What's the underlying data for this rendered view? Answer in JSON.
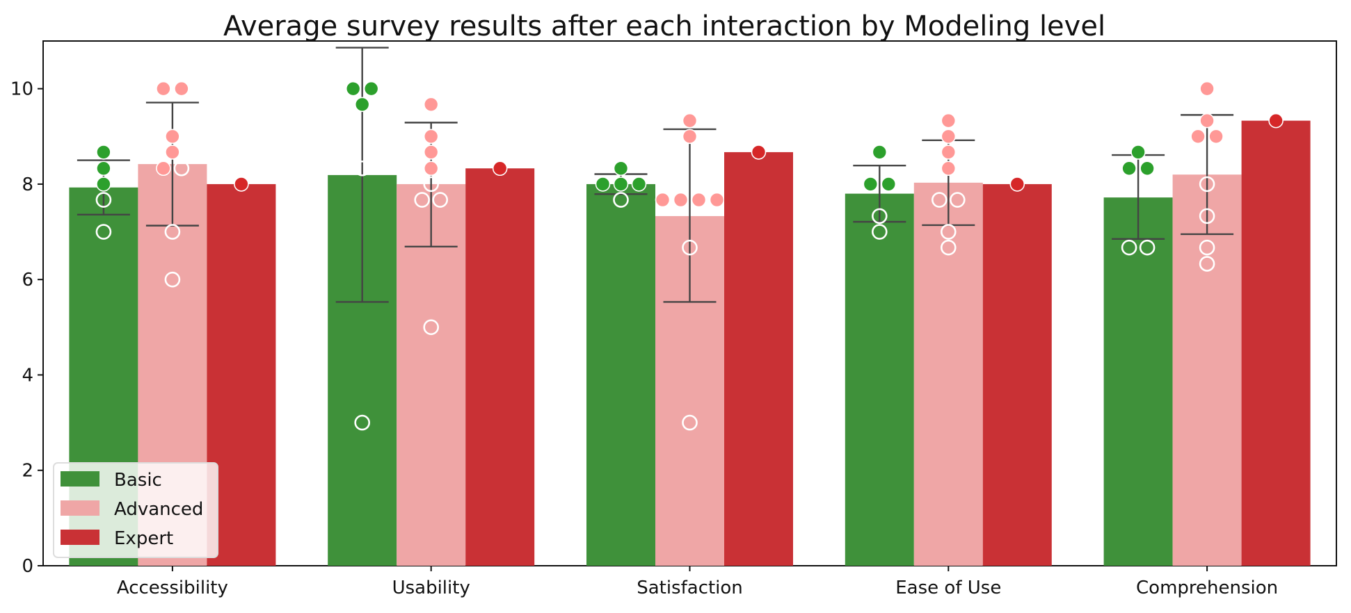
{
  "chart_data": {
    "type": "bar",
    "title": "Average survey results after each interaction by Modeling level",
    "xlabel": "",
    "ylabel": "",
    "categories": [
      "Accessibility",
      "Usability",
      "Satisfaction",
      "Ease of Use",
      "Comprehension"
    ],
    "ylim": [
      0,
      11
    ],
    "y_ticks": [
      0,
      2,
      4,
      6,
      8,
      10
    ],
    "grid": false,
    "legend_position": "bottom-left",
    "series": [
      {
        "name": "Basic",
        "color": "#3f913a",
        "point_color": "#2ca02c",
        "values": [
          7.93,
          8.19,
          8.0,
          7.8,
          7.72
        ],
        "error_low": [
          7.36,
          5.53,
          7.79,
          7.21,
          6.85
        ],
        "error_high": [
          8.5,
          10.86,
          8.21,
          8.39,
          8.61
        ],
        "points": [
          [
            8.67,
            8.33,
            8.0,
            7.67,
            7.0
          ],
          [
            10.0,
            10.0,
            9.67,
            8.33,
            3.0
          ],
          [
            8.0,
            8.0,
            8.0,
            8.33,
            7.67
          ],
          [
            8.67,
            8.0,
            8.0,
            7.33,
            7.0
          ],
          [
            8.67,
            8.33,
            8.33,
            6.67,
            6.67
          ]
        ],
        "point_style": [
          [
            "filled",
            "filled",
            "filled",
            "outlined",
            "outlined"
          ],
          [
            "filled",
            "filled",
            "filled",
            "outlined",
            "outlined"
          ],
          [
            "filled",
            "filled",
            "filled",
            "filled",
            "outlined"
          ],
          [
            "filled",
            "filled",
            "filled",
            "outlined",
            "outlined"
          ],
          [
            "filled",
            "filled",
            "filled",
            "outlined",
            "outlined"
          ]
        ]
      },
      {
        "name": "Advanced",
        "color": "#efa6a6",
        "point_color": "#ff9896",
        "values": [
          8.42,
          8.0,
          7.33,
          8.03,
          8.2
        ],
        "error_low": [
          7.13,
          6.69,
          5.53,
          7.14,
          6.95
        ],
        "error_high": [
          9.71,
          9.29,
          9.15,
          8.92,
          9.45
        ],
        "points": [
          [
            10.0,
            10.0,
            9.0,
            8.67,
            8.33,
            8.33,
            7.0,
            6.0
          ],
          [
            9.67,
            9.0,
            8.67,
            8.33,
            8.0,
            7.67,
            7.67,
            5.0
          ],
          [
            9.33,
            9.0,
            7.67,
            7.67,
            7.67,
            7.67,
            6.67,
            3.0
          ],
          [
            9.33,
            9.0,
            8.67,
            8.33,
            7.67,
            7.67,
            7.0,
            6.67
          ],
          [
            10.0,
            9.33,
            9.0,
            9.0,
            8.0,
            7.33,
            6.67,
            6.33
          ]
        ],
        "point_style": [
          [
            "filled",
            "filled",
            "filled",
            "filled",
            "filled",
            "outlined",
            "outlined",
            "outlined"
          ],
          [
            "filled",
            "filled",
            "filled",
            "filled",
            "outlined",
            "outlined",
            "outlined",
            "outlined"
          ],
          [
            "filled",
            "filled",
            "filled",
            "filled",
            "filled",
            "filled",
            "outlined",
            "outlined"
          ],
          [
            "filled",
            "filled",
            "filled",
            "filled",
            "outlined",
            "outlined",
            "outlined",
            "outlined"
          ],
          [
            "filled",
            "filled",
            "filled",
            "filled",
            "outlined",
            "outlined",
            "outlined",
            "outlined"
          ]
        ]
      },
      {
        "name": "Expert",
        "color": "#c93135",
        "point_color": "#d62728",
        "values": [
          8.0,
          8.33,
          8.67,
          8.0,
          9.33
        ],
        "points": [
          [
            8.0
          ],
          [
            8.33
          ],
          [
            8.67
          ],
          [
            8.0
          ],
          [
            9.33
          ]
        ],
        "point_style": [
          [
            "filled"
          ],
          [
            "filled"
          ],
          [
            "filled"
          ],
          [
            "filled"
          ],
          [
            "filled"
          ]
        ]
      }
    ]
  }
}
